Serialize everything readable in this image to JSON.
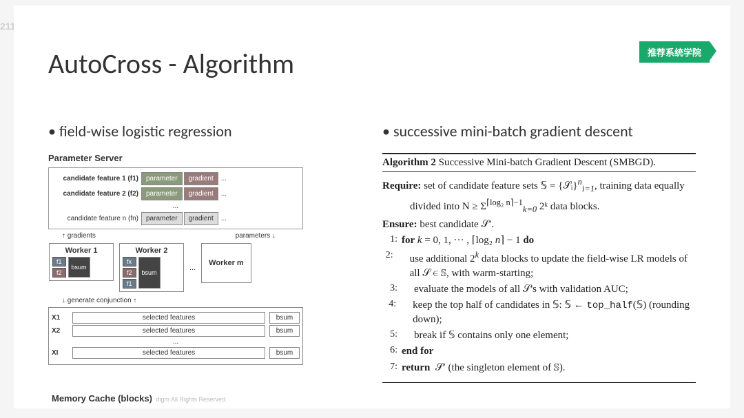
{
  "page_number": "211",
  "badge": "推荐系统学院",
  "title": "AutoCross - Algorithm",
  "left": {
    "bullet": "field-wise logistic regression",
    "ps_title": "Parameter Server",
    "candidate_rows": [
      {
        "label": "candidate feature 1 (f1)",
        "param": "parameter",
        "grad": "gradient",
        "gray": false
      },
      {
        "label": "candidate feature 2 (f2)",
        "param": "parameter",
        "grad": "gradient",
        "gray": false
      },
      {
        "label": "candidate feature n (fn)",
        "param": "parameter",
        "grad": "gradient",
        "gray": true
      }
    ],
    "ellipsis_row": "...",
    "arrow_left": "gradients",
    "arrow_right": "parameters",
    "workers": [
      {
        "title": "Worker 1",
        "fs": [
          "f1",
          "f2"
        ],
        "bsum": "bsum"
      },
      {
        "title": "Worker 2",
        "fs": [
          "fx",
          "f2",
          "f1"
        ],
        "bsum": "bsum"
      }
    ],
    "worker_m": "Worker m",
    "gen_conj": "generate conjunction",
    "mem_rows": [
      {
        "label": "X1",
        "sel": "selected features",
        "bsum": "bsum"
      },
      {
        "label": "X2",
        "sel": "selected features",
        "bsum": "bsum"
      },
      {
        "label": "XI",
        "sel": "selected features",
        "bsum": "bsum"
      }
    ],
    "mem_title": "Memory Cache (blocks)",
    "dots": "..."
  },
  "right": {
    "bullet": "successive mini-batch gradient descent",
    "algo_label": "Algorithm 2",
    "algo_name": "Successive Mini-batch Gradient Descent (SMBGD).",
    "require_label": "Require:",
    "require_a": "set of candidate feature sets 𝕊 = {𝒮ᵢ}",
    "require_a_sup": "n",
    "require_a_sub": "i=1",
    "require_a2": ", training data equally",
    "require_b": "divided into N ≥ Σ",
    "require_b_sup": "⌈log₂ n⌉−1",
    "require_b_sub": "k=0",
    "require_b2": " 2ᵏ data blocks.",
    "ensure_label": "Ensure:",
    "ensure_text": "best candidate 𝒮′.",
    "lines": [
      {
        "n": "1:",
        "html": "<b>for</b> <span class='ital'>k</span> = 0, 1, ··· , ⌈log₂ <span class='ital'>n</span>⌉ − 1 <b>do</b>"
      },
      {
        "n": "2:",
        "html": "use additional 2<sup><span class='ital'>k</span></sup> data blocks to update the field-wise LR models of all 𝒮 ∈ 𝕊, with warm-starting;",
        "indent": true
      },
      {
        "n": "3:",
        "html": "evaluate the models of all 𝒮's with validation AUC;",
        "indent": true
      },
      {
        "n": "4:",
        "html": "keep the top half of candidates in 𝕊: 𝕊 ← <span class='tt'>top_half</span>(𝕊) (rounding down);",
        "indent": true
      },
      {
        "n": "5:",
        "html": "break if 𝕊 contains only one element;",
        "indent": true
      },
      {
        "n": "6:",
        "html": "<b>end for</b>"
      },
      {
        "n": "7:",
        "html": "<b>return</b>&nbsp; 𝒮′ (the singleton element of 𝕊)."
      }
    ]
  },
  "footer_logo": "4Paradigm",
  "footer_text": "4Paradigm All Rights Reserved.",
  "colors": {
    "badge_bg": "#19a96b",
    "param_bg": "#8a9a7a",
    "grad_bg": "#9a7a7a",
    "fchip_bg": "#6b7a8a",
    "fchip_r_bg": "#8a6b6b",
    "bsum_bg": "#444444",
    "border": "#888888",
    "text": "#333333"
  }
}
